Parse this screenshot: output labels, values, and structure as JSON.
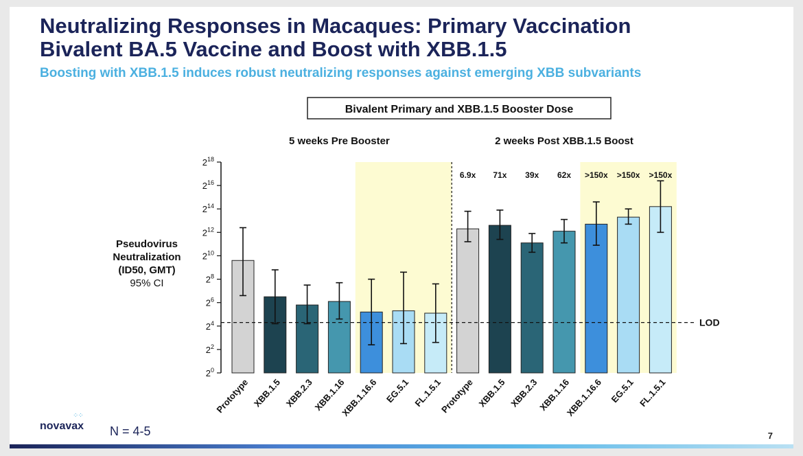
{
  "slide": {
    "title_line1": "Neutralizing Responses in Macaques: Primary Vaccination",
    "title_line2": "Bivalent BA.5 Vaccine and Boost with XBB.1.5",
    "subtitle": "Boosting with XBB.1.5 induces robust neutralizing responses against emerging XBB subvariants",
    "logo_text": "novavax",
    "n_note": "N = 4-5",
    "page_number": "7"
  },
  "chart_data": {
    "type": "bar",
    "title": "Bivalent Primary and XBB.1.5 Booster Dose",
    "ylabel_lines": [
      "Pseudovirus",
      "Neutralization",
      "(ID50, GMT)"
    ],
    "ylabel_sub": "95% CI",
    "y_scale": "log2",
    "ylim_log2": [
      0,
      18
    ],
    "yticks_log2": [
      0,
      2,
      4,
      6,
      8,
      10,
      12,
      14,
      16,
      18
    ],
    "ytick_base": "2",
    "lod_log2": 4.3,
    "lod_label": "LOD",
    "groups": [
      {
        "name": "5 weeks Pre Booster",
        "categories": [
          "Prototype",
          "XBB.1.5",
          "XBB.2.3",
          "XBB.1.16",
          "XBB.1.16.6",
          "EG.5.1",
          "FL.1.5.1"
        ],
        "values_log2": [
          9.6,
          6.5,
          5.8,
          6.1,
          5.2,
          5.3,
          5.1
        ],
        "ci_low_log2": [
          6.6,
          4.2,
          4.2,
          4.6,
          2.4,
          2.5,
          2.6
        ],
        "ci_high_log2": [
          12.4,
          8.8,
          7.5,
          7.7,
          8.0,
          8.6,
          7.6
        ],
        "fold_changes": []
      },
      {
        "name": "2 weeks Post XBB.1.5 Boost",
        "categories": [
          "Prototype",
          "XBB.1.5",
          "XBB.2.3",
          "XBB.1.16",
          "XBB.1.16.6",
          "EG.5.1",
          "FL.1.5.1"
        ],
        "values_log2": [
          12.3,
          12.6,
          11.1,
          12.1,
          12.7,
          13.3,
          14.2
        ],
        "ci_low_log2": [
          11.2,
          11.4,
          10.3,
          11.1,
          10.9,
          12.7,
          12.0
        ],
        "ci_high_log2": [
          13.8,
          13.9,
          11.9,
          13.1,
          14.6,
          14.0,
          16.4
        ],
        "fold_changes": [
          "6.9x",
          "71x",
          "39x",
          "62x",
          ">150x",
          ">150x",
          ">150x"
        ]
      }
    ],
    "bar_colors": [
      "#d3d3d3",
      "#1d4350",
      "#2a6576",
      "#4597ae",
      "#3d8fdc",
      "#a9dcf4",
      "#c6ebf8"
    ],
    "highlight_color": "#fdfbd2",
    "highlighted_categories": [
      "XBB.1.16.6",
      "EG.5.1",
      "FL.1.5.1"
    ]
  }
}
